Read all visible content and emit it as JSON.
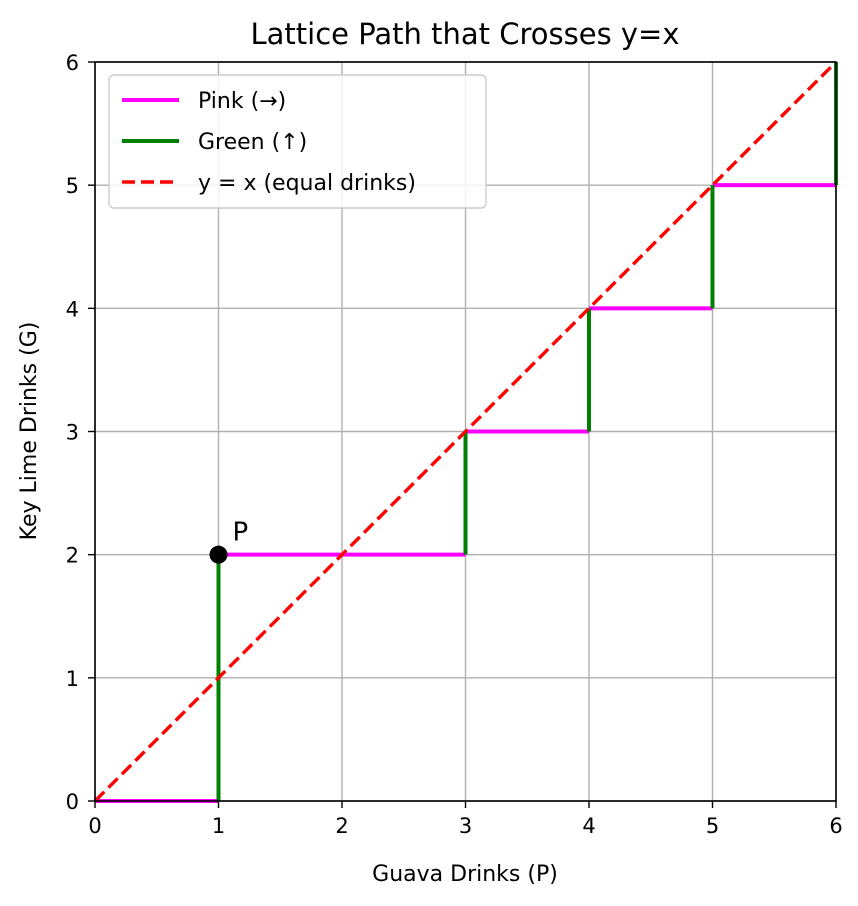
{
  "chart_data": {
    "type": "line",
    "title": "Lattice Path that Crosses y=x",
    "xlabel": "Guava Drinks (P)",
    "ylabel": "Key Lime Drinks (G)",
    "xlim": [
      0,
      6
    ],
    "ylim": [
      0,
      6
    ],
    "x_ticks": [
      "0",
      "1",
      "2",
      "3",
      "4",
      "5",
      "6"
    ],
    "y_ticks": [
      "0",
      "1",
      "2",
      "3",
      "4",
      "5",
      "6"
    ],
    "grid": true,
    "legend_position": "top-left",
    "series": [
      {
        "name": "Pink (→)",
        "color": "#ff00ff",
        "style": "solid",
        "segments": [
          [
            [
              0,
              0
            ],
            [
              1,
              0
            ]
          ],
          [
            [
              1,
              2
            ],
            [
              3,
              2
            ]
          ],
          [
            [
              3,
              3
            ],
            [
              4,
              3
            ]
          ],
          [
            [
              4,
              4
            ],
            [
              5,
              4
            ]
          ],
          [
            [
              5,
              5
            ],
            [
              6,
              5
            ]
          ]
        ]
      },
      {
        "name": "Green (↑)",
        "color": "#008000",
        "style": "solid",
        "segments": [
          [
            [
              1,
              0
            ],
            [
              1,
              2
            ]
          ],
          [
            [
              3,
              2
            ],
            [
              3,
              3
            ]
          ],
          [
            [
              4,
              3
            ],
            [
              4,
              4
            ]
          ],
          [
            [
              5,
              4
            ],
            [
              5,
              5
            ]
          ],
          [
            [
              6,
              5
            ],
            [
              6,
              6
            ]
          ]
        ]
      },
      {
        "name": "y = x (equal drinks)",
        "color": "#ff0000",
        "style": "dashed",
        "segments": [
          [
            [
              0,
              0
            ],
            [
              6,
              6
            ]
          ]
        ]
      }
    ],
    "point": {
      "label": "P",
      "x": 1,
      "y": 2,
      "color": "#000000"
    }
  }
}
